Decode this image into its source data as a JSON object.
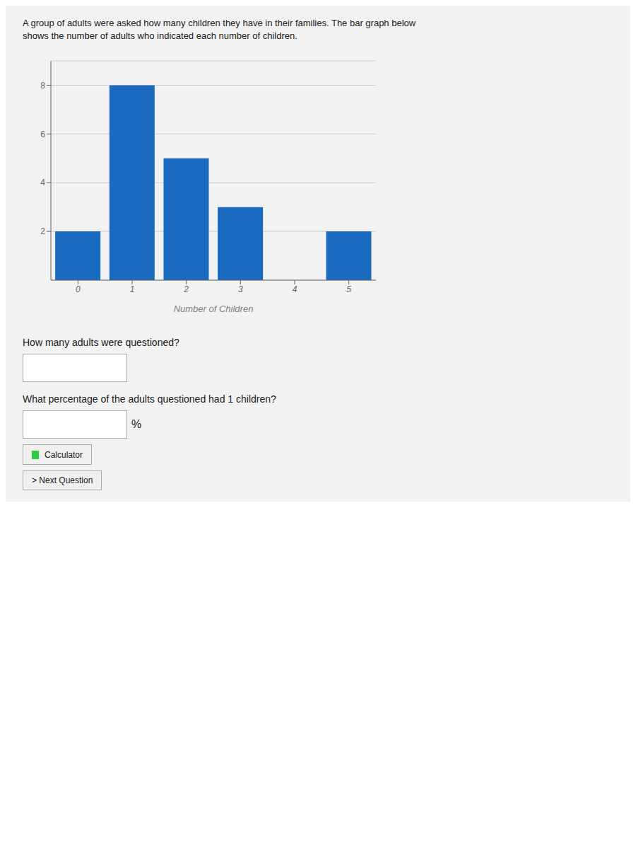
{
  "chart_data": {
    "type": "bar",
    "title": "A group of adults were asked how many children they have in their families. The bar graph below",
    "subtitle": "shows the number of adults who indicated each number of children.",
    "categories": [
      "0",
      "1",
      "2",
      "3",
      "4",
      "5"
    ],
    "values": [
      2,
      8,
      5,
      3,
      0,
      2
    ],
    "color": "#1a6abf",
    "xlabel": "Number of Children",
    "ylim": [
      0,
      9
    ],
    "yticks": [
      2,
      4,
      6,
      8
    ],
    "grid": true,
    "annotations": [
      "How many adults were questioned?",
      "What percentage of the adults questioned had 1 children?",
      "%",
      "Calculator",
      "> Next Question"
    ]
  }
}
